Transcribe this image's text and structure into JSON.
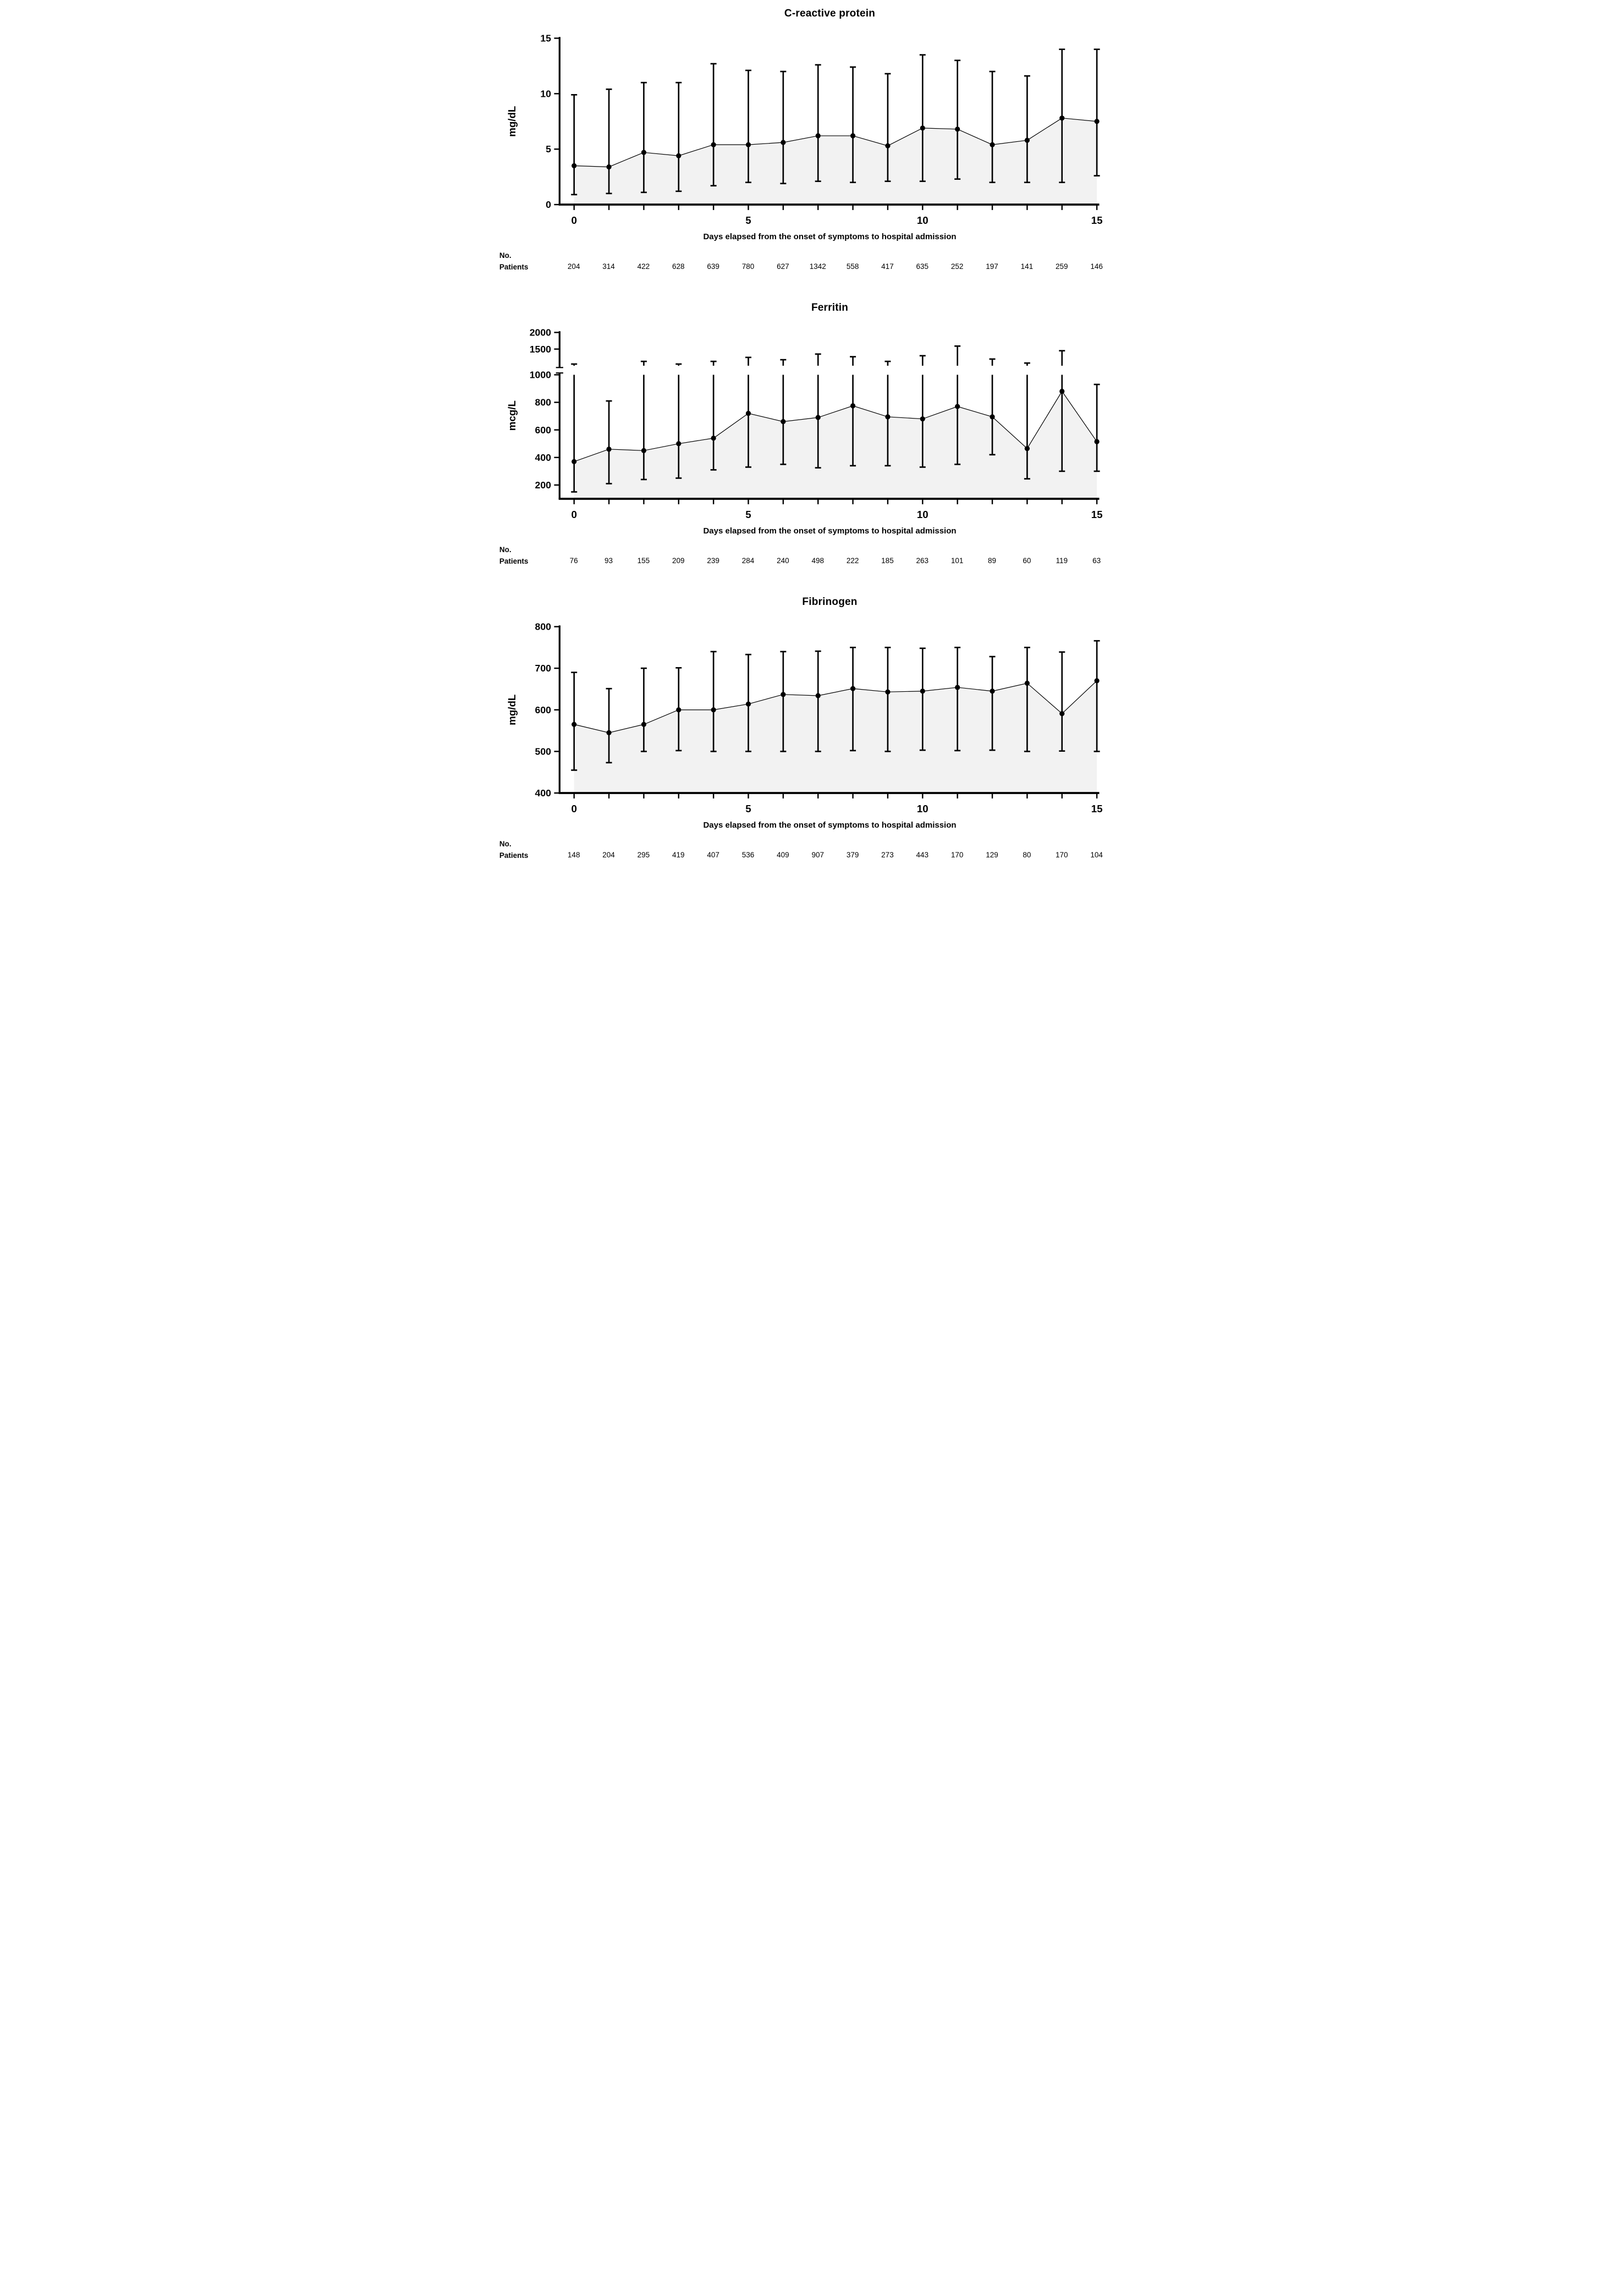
{
  "colors": {
    "ink": "#000000",
    "background": "#ffffff",
    "area_fill": "#f2f2f2"
  },
  "labels": {
    "no": "No.",
    "patients": "Patients"
  },
  "x_axis": {
    "label": "Days elapsed from the onset of symptoms to hospital admission",
    "labeled_ticks": [
      0,
      5,
      10,
      15
    ]
  },
  "chart_data": [
    {
      "type": "line",
      "title": "C-reactive protein",
      "ylabel": "mg/dL",
      "xlabel": "Days elapsed from the onset of symptoms to hospital admission",
      "x": [
        0,
        1,
        2,
        3,
        4,
        5,
        6,
        7,
        8,
        9,
        10,
        11,
        12,
        13,
        14,
        15
      ],
      "ylim": [
        0,
        15
      ],
      "yticks": [
        0,
        5,
        10,
        15
      ],
      "series": [
        {
          "name": "median",
          "values": [
            3.5,
            3.4,
            4.7,
            4.4,
            5.4,
            5.4,
            5.6,
            6.2,
            6.2,
            5.3,
            6.9,
            6.8,
            5.4,
            5.8,
            7.8,
            7.5
          ]
        },
        {
          "name": "upper_whisker",
          "values": [
            9.9,
            10.4,
            11.0,
            11.0,
            12.7,
            12.1,
            12.0,
            12.6,
            12.4,
            11.8,
            13.5,
            13.0,
            12.0,
            11.6,
            14.0,
            14.0
          ]
        },
        {
          "name": "lower_whisker",
          "values": [
            0.9,
            1.0,
            1.1,
            1.2,
            1.7,
            2.0,
            1.9,
            2.1,
            2.0,
            2.1,
            2.1,
            2.3,
            2.0,
            2.0,
            2.0,
            2.6
          ]
        }
      ],
      "patients": [
        204,
        314,
        422,
        628,
        639,
        780,
        627,
        1342,
        558,
        417,
        635,
        252,
        197,
        141,
        259,
        146
      ]
    },
    {
      "type": "line",
      "title": "Ferritin",
      "ylabel": "mcg/L",
      "xlabel": "Days elapsed from the onset of symptoms to hospital admission",
      "x": [
        0,
        1,
        2,
        3,
        4,
        5,
        6,
        7,
        8,
        9,
        10,
        11,
        12,
        13,
        14,
        15
      ],
      "ylim": [
        100,
        2000
      ],
      "yticks": [
        200,
        400,
        600,
        800,
        1000
      ],
      "yticks_compressed": [
        1500,
        2000
      ],
      "axis_break": {
        "lower_max": 1000,
        "upper_max": 2000
      },
      "series": [
        {
          "name": "median",
          "values": [
            370,
            460,
            450,
            500,
            540,
            720,
            660,
            690,
            775,
            695,
            680,
            770,
            695,
            465,
            880,
            515
          ]
        },
        {
          "name": "upper_whisker",
          "values": [
            1050,
            810,
            1130,
            1050,
            1130,
            1250,
            1180,
            1350,
            1270,
            1130,
            1300,
            1590,
            1200,
            1080,
            1450,
            930
          ]
        },
        {
          "name": "lower_whisker",
          "values": [
            150,
            210,
            240,
            250,
            310,
            330,
            350,
            325,
            340,
            340,
            330,
            350,
            420,
            245,
            300,
            300
          ]
        }
      ],
      "patients": [
        76,
        93,
        155,
        209,
        239,
        284,
        240,
        498,
        222,
        185,
        263,
        101,
        89,
        60,
        119,
        63
      ]
    },
    {
      "type": "line",
      "title": "Fibrinogen",
      "ylabel": "mg/dL",
      "xlabel": "Days elapsed from the onset of symptoms to hospital admission",
      "x": [
        0,
        1,
        2,
        3,
        4,
        5,
        6,
        7,
        8,
        9,
        10,
        11,
        12,
        13,
        14,
        15
      ],
      "ylim": [
        400,
        800
      ],
      "yticks": [
        400,
        500,
        600,
        700,
        800
      ],
      "series": [
        {
          "name": "median",
          "values": [
            565,
            545,
            565,
            600,
            600,
            614,
            637,
            634,
            651,
            643,
            645,
            654,
            645,
            664,
            591,
            670
          ]
        },
        {
          "name": "upper_whisker",
          "values": [
            690,
            651,
            700,
            701,
            740,
            733,
            740,
            741,
            750,
            750,
            748,
            750,
            728,
            750,
            739,
            766
          ]
        },
        {
          "name": "lower_whisker",
          "values": [
            455,
            473,
            500,
            502,
            500,
            500,
            500,
            500,
            502,
            500,
            503,
            502,
            503,
            500,
            501,
            500
          ]
        }
      ],
      "patients": [
        148,
        204,
        295,
        419,
        407,
        536,
        409,
        907,
        379,
        273,
        443,
        170,
        129,
        80,
        170,
        104
      ]
    }
  ]
}
